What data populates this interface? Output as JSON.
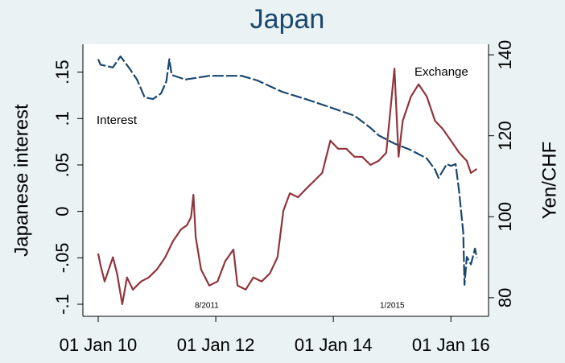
{
  "chart_data": {
    "type": "line",
    "title": "Japan",
    "y_label": "Japanese interest",
    "y2_label": "Yen/CHF",
    "annotations": [
      "Interest",
      "Exchange",
      "8/2011",
      "1/2015"
    ],
    "xlim": [
      2009.74,
      2016.64
    ],
    "xticks": [
      {
        "value": 2010,
        "label": "01 Jan 10"
      },
      {
        "value": 2012,
        "label": "01 Jan 12"
      },
      {
        "value": 2014,
        "label": "01 Jan 14"
      },
      {
        "value": 2016,
        "label": "01 Jan 16"
      }
    ],
    "ylim": [
      -0.113,
      0.18
    ],
    "yticks": [
      {
        "value": -0.1,
        "label": "-.1"
      },
      {
        "value": -0.05,
        "label": "-.05"
      },
      0,
      {
        "value": 0.05,
        "label": ".05"
      },
      {
        "value": 0.1,
        "label": ".1"
      },
      {
        "value": 0.15,
        "label": ".15"
      }
    ],
    "y2lim": [
      75.4,
      142.6
    ],
    "y2ticks": [
      80,
      100,
      120,
      140
    ],
    "series": [
      {
        "name": "Interest",
        "color": "#1a476f",
        "axis": "y",
        "x": [
          2010,
          2010.04,
          2010.25,
          2010.38,
          2010.52,
          2010.66,
          2010.79,
          2010.93,
          2011.07,
          2011.16,
          2011.21,
          2011.25,
          2011.48,
          2011.89,
          2012.44,
          2012.71,
          2013.12,
          2013.53,
          2013.95,
          2014.36,
          2014.63,
          2014.77,
          2015.04,
          2015.32,
          2015.59,
          2015.73,
          2015.79,
          2015.93,
          2016,
          2016.08,
          2016.14,
          2016.21,
          2016.23,
          2016.27,
          2016.34,
          2016.41,
          2016.44
        ],
        "values": [
          0.164,
          0.158,
          0.155,
          0.167,
          0.155,
          0.142,
          0.123,
          0.121,
          0.127,
          0.14,
          0.164,
          0.147,
          0.142,
          0.146,
          0.146,
          0.141,
          0.129,
          0.121,
          0.112,
          0.103,
          0.09,
          0.082,
          0.073,
          0.066,
          0.057,
          0.045,
          0.036,
          0.051,
          0.049,
          0.051,
          0.021,
          -0.023,
          -0.079,
          -0.049,
          -0.057,
          -0.04,
          -0.05
        ]
      },
      {
        "name": "Exchange",
        "color": "#90353b",
        "axis": "y2",
        "x": [
          2010,
          2010.04,
          2010.11,
          2010.25,
          2010.32,
          2010.41,
          2010.49,
          2010.59,
          2010.73,
          2010.86,
          2011,
          2011.14,
          2011.27,
          2011.41,
          2011.51,
          2011.58,
          2011.62,
          2011.66,
          2011.75,
          2011.89,
          2012.03,
          2012.16,
          2012.3,
          2012.37,
          2012.51,
          2012.64,
          2012.78,
          2012.92,
          2013.05,
          2013.15,
          2013.26,
          2013.4,
          2013.53,
          2013.67,
          2013.81,
          2013.95,
          2014.08,
          2014.22,
          2014.36,
          2014.49,
          2014.63,
          2014.77,
          2014.9,
          2015.04,
          2015.11,
          2015.18,
          2015.32,
          2015.45,
          2015.59,
          2015.73,
          2015.86,
          2016,
          2016.14,
          2016.27,
          2016.34,
          2016.44
        ],
        "values": [
          90.9,
          88.0,
          84.0,
          90.0,
          86.0,
          78.4,
          85.0,
          82.0,
          84.0,
          85.0,
          87.0,
          90.0,
          93.9,
          96.9,
          97.9,
          99.9,
          105.4,
          94.9,
          87.0,
          83.0,
          84.0,
          89.0,
          91.9,
          83.0,
          82.0,
          85.0,
          84.0,
          86.0,
          90.0,
          101.5,
          105.8,
          104.8,
          106.8,
          108.8,
          110.8,
          118.8,
          116.8,
          116.8,
          114.8,
          114.8,
          112.8,
          113.8,
          115.8,
          136.6,
          114.8,
          123.7,
          129.7,
          132.7,
          129.7,
          123.7,
          121.7,
          118.8,
          115.8,
          113.8,
          110.8,
          111.8
        ]
      }
    ]
  }
}
